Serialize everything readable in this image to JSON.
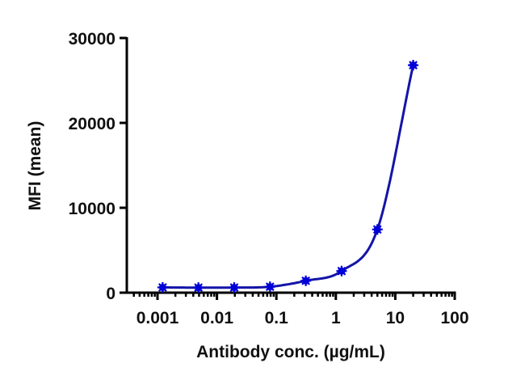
{
  "chart_data": {
    "type": "scatter",
    "title": "",
    "xlabel": "Antibody conc. (µg/mL)",
    "ylabel": "MFI (mean)",
    "xscale": "log",
    "xlim": [
      0.0005,
      100
    ],
    "ylim": [
      0,
      30000
    ],
    "x_ticks": [
      "0.001",
      "0.01",
      "0.1",
      "1",
      "10",
      "100"
    ],
    "y_ticks": [
      "0",
      "10000",
      "20000",
      "30000"
    ],
    "grid": false,
    "legend": null,
    "series": [
      {
        "name": "MFI",
        "marker": "asterisk",
        "fit": "4-parameter logistic curve",
        "color": "#1414a8",
        "marker_color": "#0000d8",
        "x": [
          0.00122,
          0.00488,
          0.0195,
          0.0781,
          0.3125,
          1.25,
          5,
          20
        ],
        "values": [
          620,
          600,
          610,
          700,
          1400,
          2550,
          7450,
          26800
        ]
      }
    ]
  },
  "colors": {
    "axis": "#000000",
    "line": "#1414a8",
    "marker": "#0000d8"
  }
}
